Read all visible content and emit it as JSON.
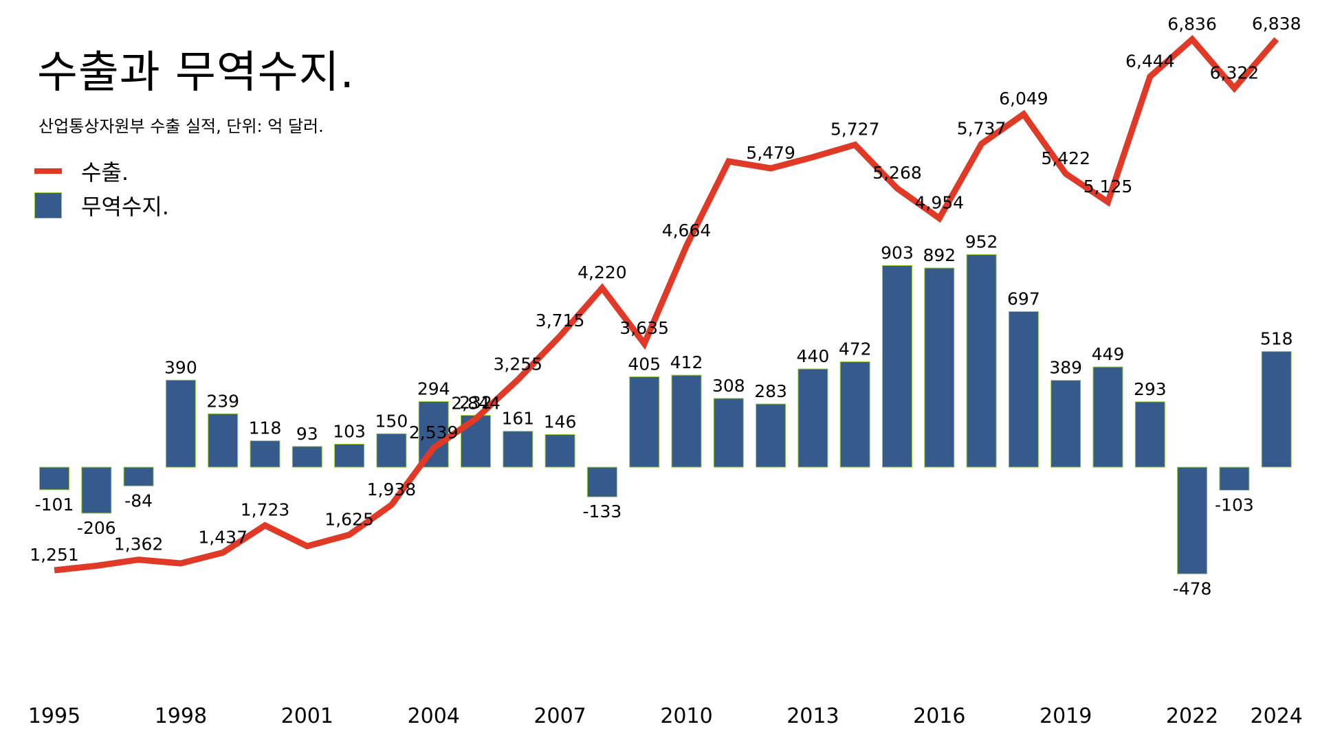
{
  "chart_data": {
    "type": "bar+line",
    "title": "수출과 무역수지.",
    "subtitle": "산업통상자원부 수출 실적, 단위: 억 달러.",
    "x": [
      1995,
      1996,
      1997,
      1998,
      1999,
      2000,
      2001,
      2002,
      2003,
      2004,
      2005,
      2006,
      2007,
      2008,
      2009,
      2010,
      2011,
      2012,
      2013,
      2014,
      2015,
      2016,
      2017,
      2018,
      2019,
      2020,
      2021,
      2022,
      2023,
      2024
    ],
    "x_tick_labels": [
      "1995",
      "1998",
      "2001",
      "2004",
      "2007",
      "2010",
      "2013",
      "2016",
      "2019",
      "2022",
      "2024"
    ],
    "series": [
      {
        "name": "수출.",
        "type": "line",
        "color": "#e03a26",
        "values": [
          1251,
          1298,
          1362,
          1323,
          1437,
          1723,
          1504,
          1625,
          1938,
          2539,
          2844,
          3255,
          3715,
          4220,
          3635,
          4664,
          5552,
          5479,
          5597,
          5727,
          5268,
          4954,
          5737,
          6049,
          5422,
          5125,
          6444,
          6836,
          6322,
          6838
        ],
        "value_labels": [
          "1,251",
          null,
          "1,362",
          null,
          "1,437",
          "1,723",
          null,
          "1,625",
          "1,938",
          "2,539",
          "2,844",
          "3,255",
          "3,715",
          "4,220",
          "3,635",
          "4,664",
          null,
          "5,479",
          null,
          "5,727",
          "5,268",
          "4,954",
          "5,737",
          "6,049",
          "5,422",
          "5,125",
          "6,444",
          "6,836",
          "6,322",
          "6,838"
        ]
      },
      {
        "name": "무역수지.",
        "type": "bar",
        "color": "#365a8b",
        "values": [
          -101,
          -206,
          -84,
          390,
          239,
          118,
          93,
          103,
          150,
          294,
          232,
          161,
          146,
          -133,
          405,
          412,
          308,
          283,
          440,
          472,
          903,
          892,
          952,
          697,
          389,
          449,
          293,
          -478,
          -103,
          518
        ],
        "value_labels": [
          "-101",
          "-206",
          "-84",
          "390",
          "239",
          "118",
          "93",
          "103",
          "150",
          "294",
          "232",
          "161",
          "146",
          "-133",
          "405",
          "412",
          "308",
          "283",
          "440",
          "472",
          "903",
          "892",
          "952",
          "697",
          "389",
          "449",
          "293",
          "-478",
          "-103",
          "518"
        ]
      }
    ],
    "bar_axis_range": [
      -478,
      952
    ],
    "line_axis_range": [
      1251,
      6838
    ],
    "grid": false,
    "legend_position": "top-left"
  }
}
